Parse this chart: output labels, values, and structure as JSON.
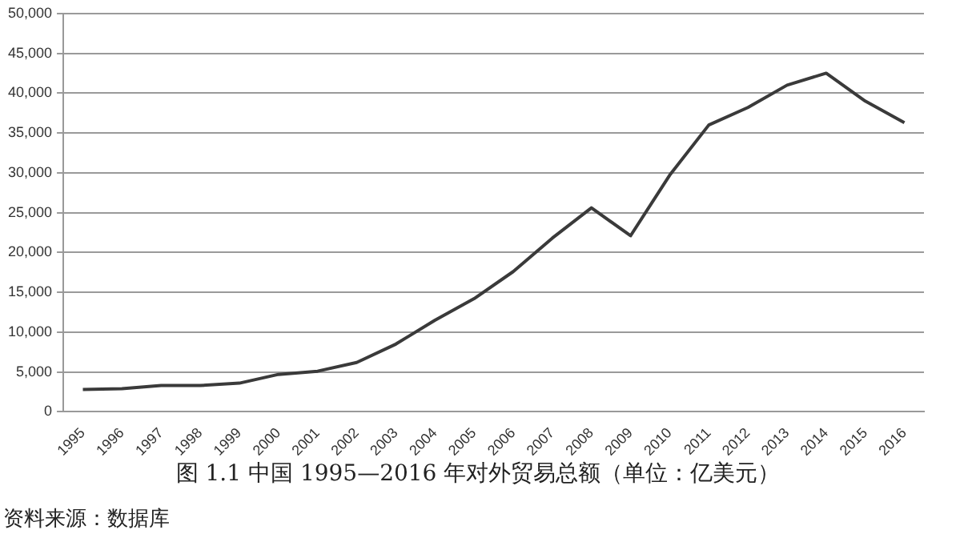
{
  "chart_data": {
    "type": "line",
    "title": "图 1.1 中国 1995—2016 年对外贸易总额（单位：亿美元）",
    "annotations": [
      "资料来源：数据库"
    ],
    "categories": [
      "1995",
      "1996",
      "1997",
      "1998",
      "1999",
      "2000",
      "2001",
      "2002",
      "2003",
      "2004",
      "2005",
      "2006",
      "2007",
      "2008",
      "2009",
      "2010",
      "2011",
      "2012",
      "2013",
      "2014",
      "2015",
      "2016"
    ],
    "series": [
      {
        "color": "#3a3a3a",
        "values": [
          2800,
          2900,
          3300,
          3300,
          3600,
          4700,
          5100,
          6200,
          8500,
          11500,
          14200,
          17600,
          21800,
          25600,
          22100,
          29700,
          36000,
          38200,
          41000,
          42500,
          39000,
          36300
        ]
      }
    ],
    "ylim": [
      0,
      50000
    ],
    "yticks": [
      {
        "value": 0,
        "label": "0"
      },
      {
        "value": 5000,
        "label": "5,000"
      },
      {
        "value": 10000,
        "label": "10,000"
      },
      {
        "value": 15000,
        "label": "15,000"
      },
      {
        "value": 20000,
        "label": "20,000"
      },
      {
        "value": 25000,
        "label": "25,000"
      },
      {
        "value": 30000,
        "label": "30,000"
      },
      {
        "value": 35000,
        "label": "35,000"
      },
      {
        "value": 40000,
        "label": "40,000"
      },
      {
        "value": 45000,
        "label": "45,000"
      },
      {
        "value": 50000,
        "label": "50,000"
      }
    ],
    "grid": "y",
    "legend": false,
    "marker": "none",
    "line_style": "solid"
  }
}
